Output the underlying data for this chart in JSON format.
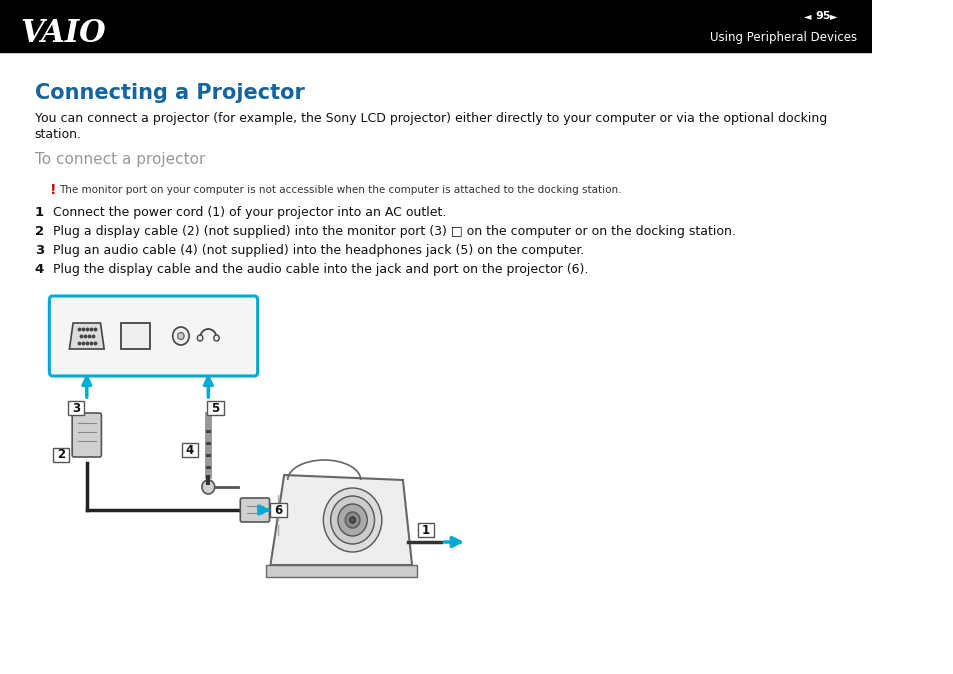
{
  "page_num": "95",
  "header_bg": "#000000",
  "header_text": "Using Peripheral Devices",
  "title": "Connecting a Projector",
  "title_color": "#1464a0",
  "body_text1": "You can connect a projector (for example, the Sony LCD projector) either directly to your computer or via the optional docking",
  "body_text2": "station.",
  "subtitle": "To connect a projector",
  "subtitle_color": "#999999",
  "warning_excl": "!",
  "warning_text": "The monitor port on your computer is not accessible when the computer is attached to the docking station.",
  "steps": [
    "Connect the power cord (1) of your projector into an AC outlet.",
    "Plug a display cable (2) (not supplied) into the monitor port (3) □ on the computer or on the docking station.",
    "Plug an audio cable (4) (not supplied) into the headphones jack (5) on the computer.",
    "Plug the display cable and the audio cable into the jack and port on the projector (6)."
  ],
  "bg_color": "#ffffff",
  "arrow_color": "#00aad4",
  "border_color": "#00aad4"
}
